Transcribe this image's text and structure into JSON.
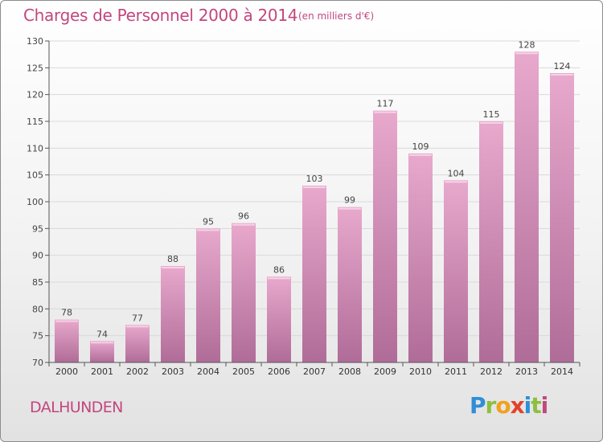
{
  "title": "Charges de Personnel 2000 à 2014",
  "subtitle": "(en milliers d'€)",
  "town": "DALHUNDEN",
  "logo": {
    "p": "P",
    "r": "r",
    "o": "o",
    "x": "x",
    "i1": "i",
    "t": "t",
    "i2": "i"
  },
  "colors": {
    "bar_light": "#e8a9cd",
    "bar_dark": "#b06c98",
    "accent": "#c2477e",
    "grid": "#d9d9d9"
  },
  "chart_data": {
    "type": "bar",
    "title": "Charges de Personnel 2000 à 2014",
    "subtitle": "(en milliers d'€)",
    "categories": [
      "2000",
      "2001",
      "2002",
      "2003",
      "2004",
      "2005",
      "2006",
      "2007",
      "2008",
      "2009",
      "2010",
      "2011",
      "2012",
      "2013",
      "2014"
    ],
    "values": [
      78,
      74,
      77,
      88,
      95,
      96,
      86,
      103,
      99,
      117,
      109,
      104,
      115,
      128,
      124
    ],
    "ylim": [
      70,
      130
    ],
    "yticks": [
      70,
      75,
      80,
      85,
      90,
      95,
      100,
      105,
      110,
      115,
      120,
      125,
      130
    ],
    "grid": true,
    "data_labels": true
  }
}
